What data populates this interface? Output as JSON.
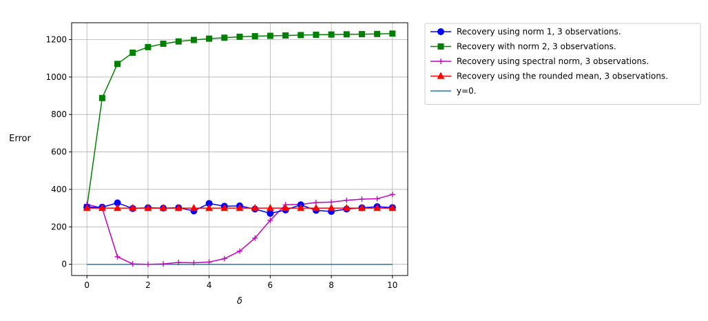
{
  "chart_data": {
    "type": "line",
    "title": "",
    "xlabel": "δ",
    "ylabel": "Error",
    "xlim": [
      -0.5,
      10.5
    ],
    "ylim": [
      -60,
      1290
    ],
    "xticks": [
      0,
      2,
      4,
      6,
      8,
      10
    ],
    "xtick_labels": [
      "0",
      "2",
      "4",
      "6",
      "8",
      "10"
    ],
    "yticks": [
      0,
      200,
      400,
      600,
      800,
      1000,
      1200
    ],
    "ytick_labels": [
      "0",
      "200",
      "400",
      "600",
      "800",
      "1000",
      "1200"
    ],
    "grid": true,
    "legend_position": "outside-right-top",
    "x": [
      0,
      0.5,
      1,
      1.5,
      2,
      2.5,
      3,
      3.5,
      4,
      4.5,
      5,
      5.5,
      6,
      6.5,
      7,
      7.5,
      8,
      8.5,
      9,
      9.5,
      10
    ],
    "series": [
      {
        "name": "Recovery using norm 1, 3 observations.",
        "color": "#0000ff",
        "marker": "circle",
        "values": [
          305,
          305,
          328,
          298,
          302,
          300,
          302,
          285,
          325,
          310,
          312,
          295,
          272,
          290,
          318,
          288,
          282,
          295,
          302,
          308,
          303
        ]
      },
      {
        "name": "Recovery with norm 2, 3 observations.",
        "color": "#008000",
        "marker": "square",
        "values": [
          305,
          888,
          1070,
          1130,
          1160,
          1178,
          1190,
          1198,
          1205,
          1210,
          1215,
          1218,
          1220,
          1222,
          1224,
          1226,
          1227,
          1228,
          1229,
          1230,
          1232
        ]
      },
      {
        "name": "Recovery using spectral norm, 3 observations.",
        "color": "#bf00bf",
        "marker": "plus",
        "values": [
          320,
          300,
          40,
          2,
          0,
          2,
          10,
          8,
          12,
          30,
          70,
          140,
          235,
          318,
          320,
          330,
          332,
          342,
          348,
          350,
          373
        ]
      },
      {
        "name": "Recovery using the rounded mean, 3 observations.",
        "color": "#ff0000",
        "marker": "triangle",
        "values": [
          300,
          300,
          300,
          300,
          300,
          300,
          300,
          300,
          300,
          300,
          300,
          300,
          300,
          300,
          300,
          300,
          300,
          300,
          300,
          300,
          300
        ]
      },
      {
        "name": "y=0.",
        "color": "#1f77b4",
        "marker": "none",
        "values": [
          0,
          0,
          0,
          0,
          0,
          0,
          0,
          0,
          0,
          0,
          0,
          0,
          0,
          0,
          0,
          0,
          0,
          0,
          0,
          0,
          0
        ]
      }
    ]
  }
}
